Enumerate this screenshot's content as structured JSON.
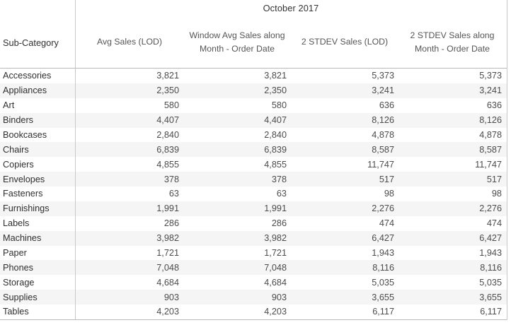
{
  "chart_data": {
    "type": "table",
    "title": "October 2017",
    "row_header": "Sub-Category",
    "columns": [
      "Avg Sales (LOD)",
      "Window Avg Sales along Month - Order Date",
      "2 STDEV Sales (LOD)",
      "2 STDEV Sales along Month - Order Date"
    ],
    "rows": [
      {
        "label": "Accessories",
        "values": [
          "3,821",
          "3,821",
          "5,373",
          "5,373"
        ]
      },
      {
        "label": "Appliances",
        "values": [
          "2,350",
          "2,350",
          "3,241",
          "3,241"
        ]
      },
      {
        "label": "Art",
        "values": [
          "580",
          "580",
          "636",
          "636"
        ]
      },
      {
        "label": "Binders",
        "values": [
          "4,407",
          "4,407",
          "8,126",
          "8,126"
        ]
      },
      {
        "label": "Bookcases",
        "values": [
          "2,840",
          "2,840",
          "4,878",
          "4,878"
        ]
      },
      {
        "label": "Chairs",
        "values": [
          "6,839",
          "6,839",
          "8,587",
          "8,587"
        ]
      },
      {
        "label": "Copiers",
        "values": [
          "4,855",
          "4,855",
          "11,747",
          "11,747"
        ]
      },
      {
        "label": "Envelopes",
        "values": [
          "378",
          "378",
          "517",
          "517"
        ]
      },
      {
        "label": "Fasteners",
        "values": [
          "63",
          "63",
          "98",
          "98"
        ]
      },
      {
        "label": "Furnishings",
        "values": [
          "1,991",
          "1,991",
          "2,276",
          "2,276"
        ]
      },
      {
        "label": "Labels",
        "values": [
          "286",
          "286",
          "474",
          "474"
        ]
      },
      {
        "label": "Machines",
        "values": [
          "3,982",
          "3,982",
          "6,427",
          "6,427"
        ]
      },
      {
        "label": "Paper",
        "values": [
          "1,721",
          "1,721",
          "1,943",
          "1,943"
        ]
      },
      {
        "label": "Phones",
        "values": [
          "7,048",
          "7,048",
          "8,116",
          "8,116"
        ]
      },
      {
        "label": "Storage",
        "values": [
          "4,684",
          "4,684",
          "5,035",
          "5,035"
        ]
      },
      {
        "label": "Supplies",
        "values": [
          "903",
          "903",
          "3,655",
          "3,655"
        ]
      },
      {
        "label": "Tables",
        "values": [
          "4,203",
          "4,203",
          "6,117",
          "6,117"
        ]
      }
    ],
    "layout": {
      "row_banding": true,
      "value_alignment": "right",
      "header_alignment": "center",
      "gridlines": "header-and-bottom-only"
    },
    "colors": {
      "band": "#f5f5f5",
      "gridline": "#b9b9b9",
      "divider": "#c9c9c9",
      "label_text": "#2f2f2f",
      "value_text": "#4c4c4c",
      "header_text": "#565656",
      "title_text": "#333333"
    }
  }
}
